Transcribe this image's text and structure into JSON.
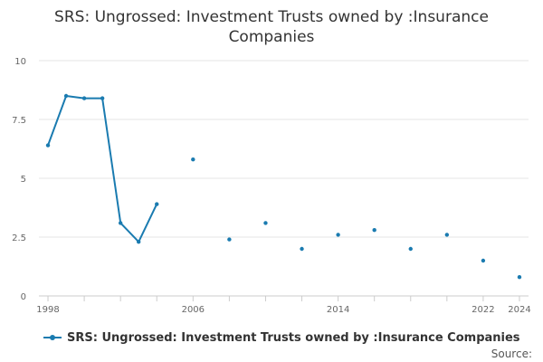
{
  "chart_data": {
    "type": "line",
    "title_lines": [
      "SRS: Ungrossed: Investment Trusts owned by :Insurance",
      "Companies"
    ],
    "xlabel": "",
    "ylabel": "",
    "x_ticks": [
      {
        "value": 1998,
        "label": "1998"
      },
      {
        "value": 2006,
        "label": "2006"
      },
      {
        "value": 2014,
        "label": "2014"
      },
      {
        "value": 2022,
        "label": "2022"
      },
      {
        "value": 2024,
        "label": "2024"
      }
    ],
    "x_minor_ticks": [
      1998,
      2000,
      2002,
      2004,
      2006,
      2008,
      2010,
      2012,
      2014,
      2016,
      2018,
      2020,
      2022,
      2024
    ],
    "y_ticks": [
      {
        "value": 0,
        "label": "0"
      },
      {
        "value": 2.5,
        "label": "2.5"
      },
      {
        "value": 5,
        "label": "5"
      },
      {
        "value": 7.5,
        "label": "7.5"
      },
      {
        "value": 10,
        "label": "10"
      }
    ],
    "xlim": [
      1997.5,
      2024.5
    ],
    "ylim": [
      0,
      10
    ],
    "grid": true,
    "legend_position": "bottom-left",
    "series": [
      {
        "name": "SRS: Ungrossed: Investment Trusts owned by :Insurance Companies",
        "color": "#1a7bb0",
        "points": [
          {
            "x": 1998,
            "y": 6.4
          },
          {
            "x": 1999,
            "y": 8.5
          },
          {
            "x": 2000,
            "y": 8.4
          },
          {
            "x": 2001,
            "y": 8.4
          },
          {
            "x": 2002,
            "y": 3.1
          },
          {
            "x": 2003,
            "y": 2.3
          },
          {
            "x": 2004,
            "y": 3.9
          },
          {
            "x": 2006,
            "y": 5.8
          },
          {
            "x": 2008,
            "y": 2.4
          },
          {
            "x": 2010,
            "y": 3.1
          },
          {
            "x": 2012,
            "y": 2.0
          },
          {
            "x": 2014,
            "y": 2.6
          },
          {
            "x": 2016,
            "y": 2.8
          },
          {
            "x": 2018,
            "y": 2.0
          },
          {
            "x": 2020,
            "y": 2.6
          },
          {
            "x": 2022,
            "y": 1.5
          },
          {
            "x": 2024,
            "y": 0.8
          }
        ]
      }
    ]
  },
  "legend": {
    "label": "SRS: Ungrossed: Investment Trusts owned by :Insurance Companies"
  },
  "source": {
    "label": "Source:"
  }
}
